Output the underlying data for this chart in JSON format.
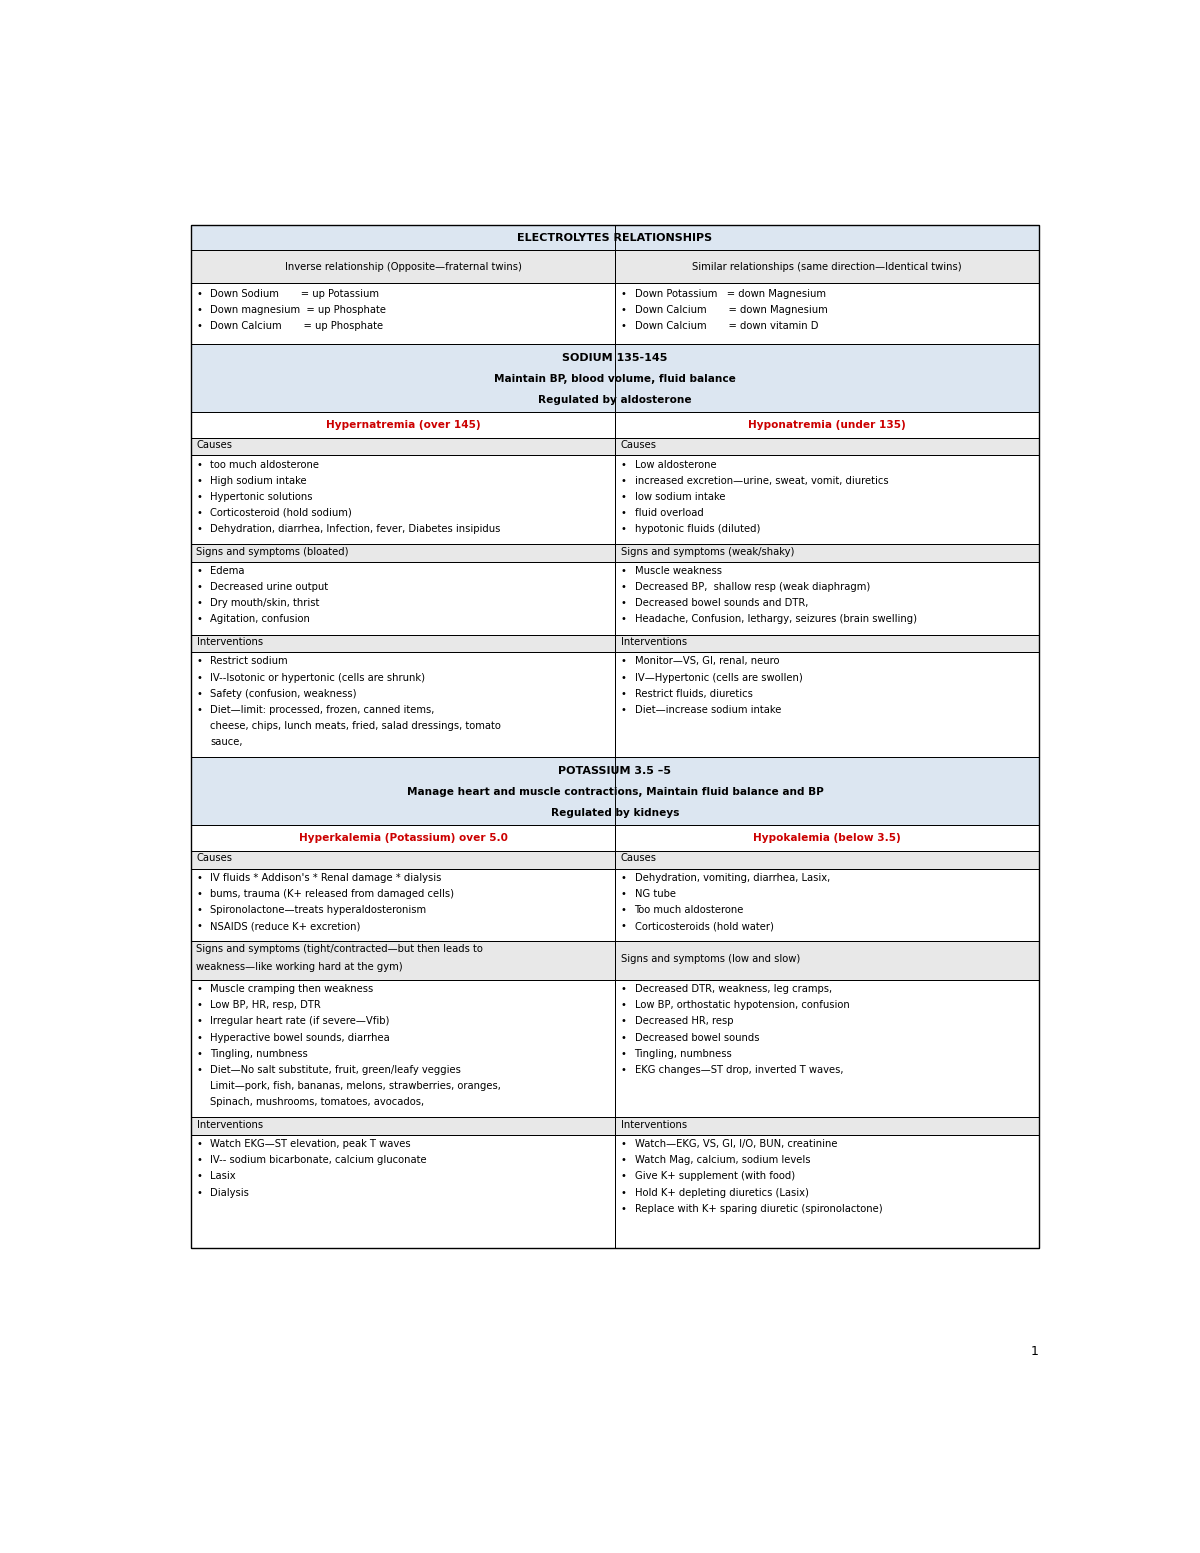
{
  "bg_color": "#ffffff",
  "light_blue": "#dce6f1",
  "light_gray": "#e8e8e8",
  "white": "#ffffff",
  "red_text": "#cc0000",
  "black_text": "#000000",
  "section1": {
    "title": "ELECTROLYTES RELATIONSHIPS",
    "col1_header": "Inverse relationship (Opposite—fraternal twins)",
    "col2_header": "Similar relationships (same direction—Identical twins)",
    "col1_items": [
      "Down Sodium       = up Potassium",
      "Down magnesium  = up Phosphate",
      "Down Calcium       = up Phosphate"
    ],
    "col2_items": [
      "Down Potassium   = down Magnesium",
      "Down Calcium       = down Magnesium",
      "Down Calcium       = down vitamin D"
    ]
  },
  "section2": {
    "title1": "SODIUM 135-145",
    "title2": "Maintain BP, blood volume, fluid balance",
    "title3": "Regulated by aldosterone",
    "col1_header": "Hypernatremia (over 145)",
    "col2_header": "Hyponatremia (under 135)",
    "col1_causes_label": "Causes",
    "col2_causes_label": "Causes",
    "col1_causes": [
      "too much aldosterone",
      "High sodium intake",
      "Hypertonic solutions",
      "Corticosteroid (hold sodium)",
      "Dehydration, diarrhea, Infection, fever, Diabetes insipidus"
    ],
    "col2_causes": [
      "Low aldosterone",
      "increased excretion—urine, sweat, vomit, diuretics",
      "low sodium intake",
      "fluid overload",
      "hypotonic fluids (diluted)"
    ],
    "col1_signs_label": "Signs and symptoms (bloated)",
    "col2_signs_label": "Signs and symptoms (weak/shaky)",
    "col1_signs": [
      "Edema",
      "Decreased urine output",
      "Dry mouth/skin, thrist",
      "Agitation, confusion"
    ],
    "col2_signs": [
      "Muscle weakness",
      "Decreased BP,  shallow resp (weak diaphragm)",
      "Decreased bowel sounds and DTR,",
      "Headache, Confusion, lethargy, seizures (brain swelling)"
    ],
    "col1_int_label": "Interventions",
    "col2_int_label": "Interventions",
    "col1_int": [
      "Restrict sodium",
      "IV--Isotonic or hypertonic (cells are shrunk)",
      "Safety (confusion, weakness)",
      "Diet—limit: processed, frozen, canned items,",
      "cheese, chips, lunch meats, fried, salad dressings, tomato",
      "sauce,"
    ],
    "col2_int": [
      "Monitor—VS, GI, renal, neuro",
      "IV—Hypertonic (cells are swollen)",
      "Restrict fluids, diuretics",
      "Diet—increase sodium intake"
    ]
  },
  "section3": {
    "title1": "POTASSIUM 3.5 –5",
    "title2": "Manage heart and muscle contractions, Maintain fluid balance and BP",
    "title3": "Regulated by kidneys",
    "col1_header": "Hyperkalemia (Potassium) over 5.0",
    "col2_header": "Hypokalemia (below 3.5)",
    "col1_causes_label": "Causes",
    "col2_causes_label": "Causes",
    "col1_causes": [
      "IV fluids * Addison's * Renal damage * dialysis",
      "bums, trauma (K+ released from damaged cells)",
      "Spironolactone—treats hyperaldosteronism",
      "NSAIDS (reduce K+ excretion)"
    ],
    "col2_causes": [
      "Dehydration, vomiting, diarrhea, Lasix,",
      "NG tube",
      "Too much aldosterone",
      "Corticosteroids (hold water)"
    ],
    "col1_signs_label": "Signs and symptoms (tight/contracted—but then leads to\nweakness—like working hard at the gym)",
    "col2_signs_label": "Signs and symptoms (low and slow)",
    "col1_signs": [
      "Muscle cramping then weakness",
      "Low BP, HR, resp, DTR",
      "Irregular heart rate (if severe—Vfib)",
      "Hyperactive bowel sounds, diarrhea",
      "Tingling, numbness",
      "Diet—No salt substitute, fruit, green/leafy veggies",
      "Limit—pork, fish, bananas, melons, strawberries, oranges,",
      "Spinach, mushrooms, tomatoes, avocados,"
    ],
    "col2_signs": [
      "Decreased DTR, weakness, leg cramps,",
      "Low BP, orthostatic hypotension, confusion",
      "Decreased HR, resp",
      "Decreased bowel sounds",
      "Tingling, numbness",
      "EKG changes—ST drop, inverted T waves,"
    ],
    "col1_int_label": "Interventions",
    "col2_int_label": "Interventions",
    "col1_int": [
      "Watch EKG—ST elevation, peak T waves",
      "IV-- sodium bicarbonate, calcium gluconate",
      "Lasix",
      "Dialysis"
    ],
    "col2_int": [
      "Watch—EKG, VS, GI, I/O, BUN, creatinine",
      "Watch Mag, calcium, sodium levels",
      "Give K+ supplement (with food)",
      "Hold K+ depleting diuretics (Lasix)",
      "Replace with K+ sparing diuretic (spironolactone)",
      ""
    ]
  }
}
